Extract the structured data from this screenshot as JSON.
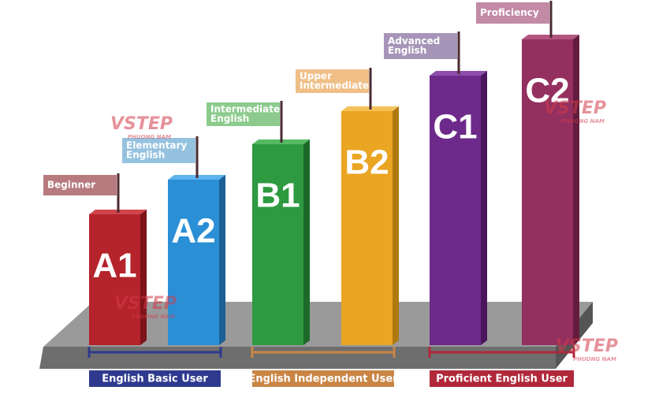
{
  "levels": [
    {
      "code": "A1",
      "flag": [
        "Beginner"
      ]
    },
    {
      "code": "A2",
      "flag": [
        "Elementary",
        "English"
      ]
    },
    {
      "code": "B1",
      "flag": [
        "Intermediate",
        "English"
      ]
    },
    {
      "code": "B2",
      "flag": [
        "Upper",
        "Intermediate"
      ]
    },
    {
      "code": "C1",
      "flag": [
        "Advanced",
        "English"
      ]
    },
    {
      "code": "C2",
      "flag": [
        "Proficiency"
      ]
    }
  ],
  "groups": [
    {
      "label": "English Basic User"
    },
    {
      "label": "English Independent User"
    },
    {
      "label": "Proficient English User"
    }
  ],
  "watermark": {
    "brand": "VSTEP",
    "sub": "PHUONG NAM"
  }
}
